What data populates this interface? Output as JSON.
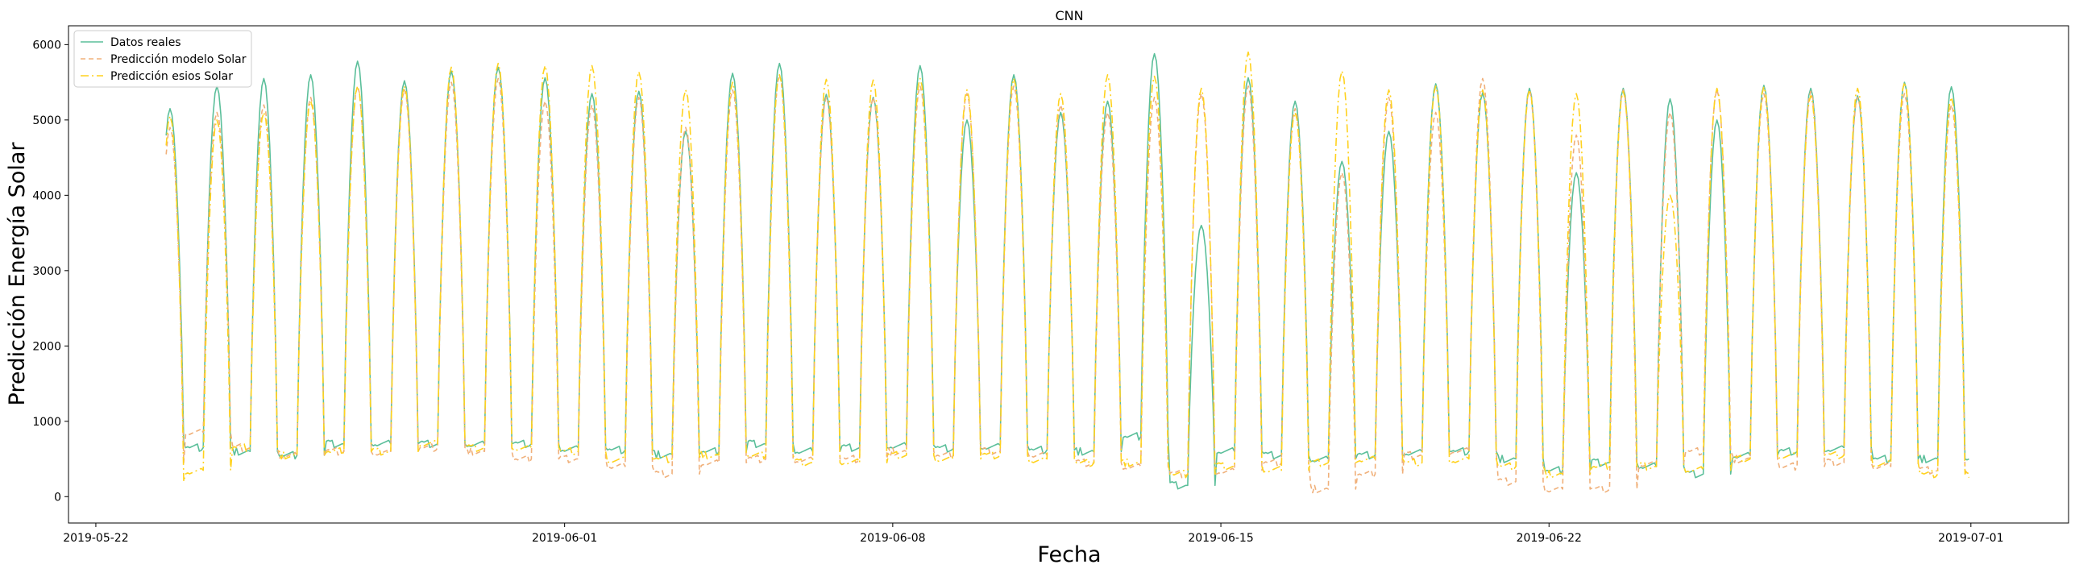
{
  "chart_data": {
    "type": "line",
    "title": "CNN",
    "xlabel": "Fecha",
    "ylabel": "Predicción Energía Solar",
    "x_start": "2019-05-23T12:00",
    "x_end": "2019-06-30T23:00",
    "xlim": [
      "2019-05-21T10:00",
      "2019-07-03T02:00"
    ],
    "ylim": [
      -350,
      6250
    ],
    "x_ticks": [
      "2019-05-22",
      "2019-06-01",
      "2019-06-08",
      "2019-06-15",
      "2019-06-22",
      "2019-07-01"
    ],
    "y_ticks": [
      0,
      1000,
      2000,
      3000,
      4000,
      5000,
      6000
    ],
    "grid": false,
    "legend_position": "top-left",
    "series": [
      {
        "name": "Datos reales",
        "color": "#5bbf9a",
        "style": "solid",
        "daily_peaks": [
          5150,
          5450,
          5550,
          5600,
          5780,
          5520,
          5650,
          5700,
          5560,
          5350,
          5380,
          4850,
          5620,
          5750,
          5340,
          5300,
          5720,
          5000,
          5600,
          5100,
          5250,
          5880,
          3600,
          5560,
          5250,
          4450,
          4850,
          5480,
          5360,
          5420,
          4300,
          5420,
          5280,
          5000,
          5460,
          5420,
          5320,
          5500,
          5440
        ],
        "night_levels": [
          700,
          650,
          600,
          550,
          700,
          700,
          700,
          700,
          700,
          650,
          620,
          560,
          600,
          700,
          600,
          650,
          680,
          640,
          680,
          620,
          600,
          800,
          150,
          600,
          550,
          500,
          550,
          600,
          600,
          500,
          350,
          450,
          400,
          300,
          550,
          600,
          650,
          500,
          500
        ]
      },
      {
        "name": "Predicción modelo Solar",
        "color": "#f0b07a",
        "style": "dashed",
        "daily_peaks": [
          4900,
          5100,
          5200,
          5300,
          5450,
          5400,
          5500,
          5550,
          5250,
          5200,
          5300,
          4900,
          5400,
          5600,
          5300,
          5300,
          5450,
          5350,
          5450,
          5200,
          5100,
          5300,
          5350,
          5450,
          5150,
          4300,
          5300,
          5100,
          5550,
          5400,
          4800,
          5400,
          5100,
          5400,
          5350,
          5380,
          5300,
          5350,
          5200
        ],
        "night_levels": [
          450,
          850,
          650,
          550,
          600,
          600,
          650,
          600,
          500,
          500,
          400,
          300,
          450,
          500,
          500,
          500,
          600,
          550,
          600,
          550,
          450,
          400,
          300,
          350,
          450,
          100,
          300,
          550,
          600,
          200,
          100,
          100,
          450,
          600,
          500,
          400,
          450,
          400,
          350
        ]
      },
      {
        "name": "Predicción esios Solar",
        "color": "#ffd21f",
        "style": "dashdot",
        "daily_peaks": [
          5050,
          5000,
          5100,
          5250,
          5450,
          5450,
          5700,
          5750,
          5720,
          5720,
          5640,
          5400,
          5500,
          5600,
          5540,
          5530,
          5550,
          5400,
          5550,
          5350,
          5600,
          5580,
          5420,
          5900,
          5100,
          5650,
          5400,
          5450,
          5400,
          5400,
          5350,
          5380,
          4000,
          5420,
          5440,
          5320,
          5420,
          5500,
          5300
        ],
        "night_levels": [
          200,
          350,
          650,
          550,
          600,
          600,
          700,
          650,
          650,
          600,
          500,
          500,
          550,
          550,
          450,
          450,
          550,
          500,
          550,
          500,
          450,
          450,
          300,
          400,
          350,
          450,
          500,
          450,
          500,
          400,
          300,
          400,
          400,
          350,
          500,
          550,
          550,
          450,
          300
        ]
      }
    ]
  }
}
